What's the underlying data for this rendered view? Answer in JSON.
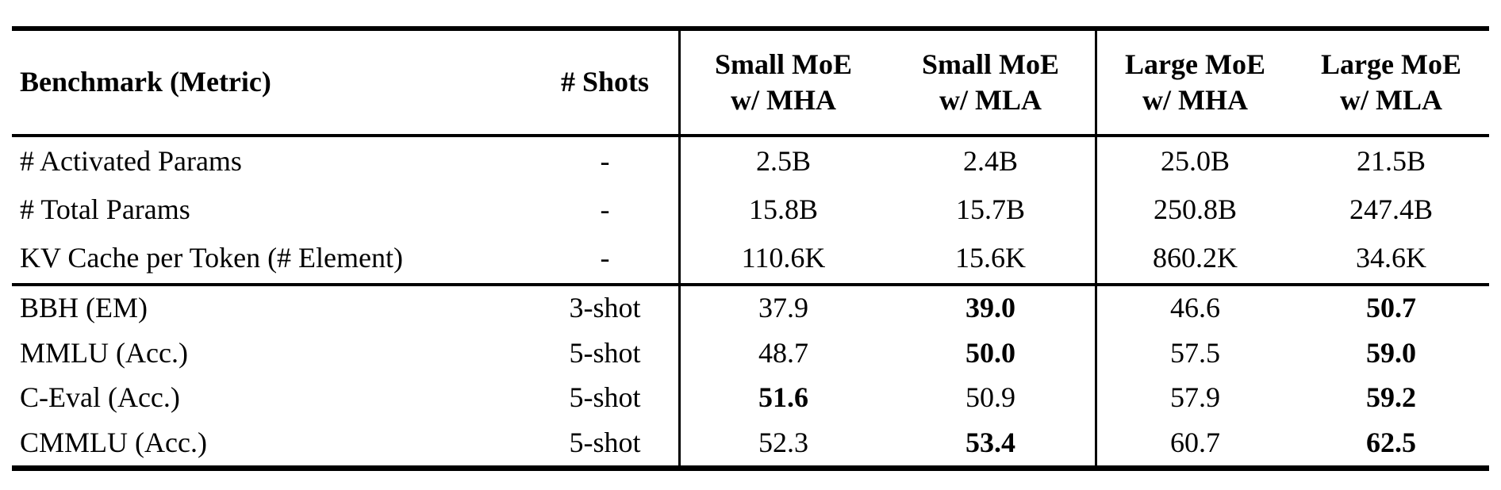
{
  "colors": {
    "background": "#ffffff",
    "rule": "#000000",
    "text": "#000000"
  },
  "table": {
    "header": {
      "col1": "Benchmark (Metric)",
      "col2": "# Shots",
      "groups": [
        {
          "line1": "Small MoE",
          "line2": "w/ MHA"
        },
        {
          "line1": "Small MoE",
          "line2": "w/ MLA"
        },
        {
          "line1": "Large MoE",
          "line2": "w/ MHA"
        },
        {
          "line1": "Large MoE",
          "line2": "w/ MLA"
        }
      ]
    },
    "param_rows": [
      {
        "label": "# Activated Params",
        "shots": "-",
        "values": [
          {
            "text": "2.5B",
            "bold": false
          },
          {
            "text": "2.4B",
            "bold": false
          },
          {
            "text": "25.0B",
            "bold": false
          },
          {
            "text": "21.5B",
            "bold": false
          }
        ]
      },
      {
        "label": "# Total Params",
        "shots": "-",
        "values": [
          {
            "text": "15.8B",
            "bold": false
          },
          {
            "text": "15.7B",
            "bold": false
          },
          {
            "text": "250.8B",
            "bold": false
          },
          {
            "text": "247.4B",
            "bold": false
          }
        ]
      },
      {
        "label": "KV Cache per Token (# Element)",
        "shots": "-",
        "values": [
          {
            "text": "110.6K",
            "bold": false
          },
          {
            "text": "15.6K",
            "bold": false
          },
          {
            "text": "860.2K",
            "bold": false
          },
          {
            "text": "34.6K",
            "bold": false
          }
        ]
      }
    ],
    "benchmark_rows": [
      {
        "label": "BBH (EM)",
        "shots": "3-shot",
        "values": [
          {
            "text": "37.9",
            "bold": false
          },
          {
            "text": "39.0",
            "bold": true
          },
          {
            "text": "46.6",
            "bold": false
          },
          {
            "text": "50.7",
            "bold": true
          }
        ]
      },
      {
        "label": "MMLU (Acc.)",
        "shots": "5-shot",
        "values": [
          {
            "text": "48.7",
            "bold": false
          },
          {
            "text": "50.0",
            "bold": true
          },
          {
            "text": "57.5",
            "bold": false
          },
          {
            "text": "59.0",
            "bold": true
          }
        ]
      },
      {
        "label": "C-Eval (Acc.)",
        "shots": "5-shot",
        "values": [
          {
            "text": "51.6",
            "bold": true
          },
          {
            "text": "50.9",
            "bold": false
          },
          {
            "text": "57.9",
            "bold": false
          },
          {
            "text": "59.2",
            "bold": true
          }
        ]
      },
      {
        "label": "CMMLU (Acc.)",
        "shots": "5-shot",
        "values": [
          {
            "text": "52.3",
            "bold": false
          },
          {
            "text": "53.4",
            "bold": true
          },
          {
            "text": "60.7",
            "bold": false
          },
          {
            "text": "62.5",
            "bold": true
          }
        ]
      }
    ]
  },
  "chart_data": {
    "type": "table",
    "title": "",
    "columns": [
      "Benchmark (Metric)",
      "# Shots",
      "Small MoE w/ MHA",
      "Small MoE w/ MLA",
      "Large MoE w/ MHA",
      "Large MoE w/ MLA"
    ],
    "rows": [
      [
        "# Activated Params",
        "-",
        "2.5B",
        "2.4B",
        "25.0B",
        "21.5B"
      ],
      [
        "# Total Params",
        "-",
        "15.8B",
        "15.7B",
        "250.8B",
        "247.4B"
      ],
      [
        "KV Cache per Token (# Element)",
        "-",
        "110.6K",
        "15.6K",
        "860.2K",
        "34.6K"
      ],
      [
        "BBH (EM)",
        "3-shot",
        37.9,
        39.0,
        46.6,
        50.7
      ],
      [
        "MMLU (Acc.)",
        "5-shot",
        48.7,
        50.0,
        57.5,
        59.0
      ],
      [
        "C-Eval (Acc.)",
        "5-shot",
        51.6,
        50.9,
        57.9,
        59.2
      ],
      [
        "CMMLU (Acc.)",
        "5-shot",
        52.3,
        53.4,
        60.7,
        62.5
      ]
    ],
    "bold_cells_note": "bold marks best result per model-size pair",
    "bold_cells": [
      [
        3,
        3
      ],
      [
        3,
        5
      ],
      [
        4,
        3
      ],
      [
        4,
        5
      ],
      [
        5,
        2
      ],
      [
        5,
        5
      ],
      [
        6,
        3
      ],
      [
        6,
        5
      ]
    ]
  }
}
